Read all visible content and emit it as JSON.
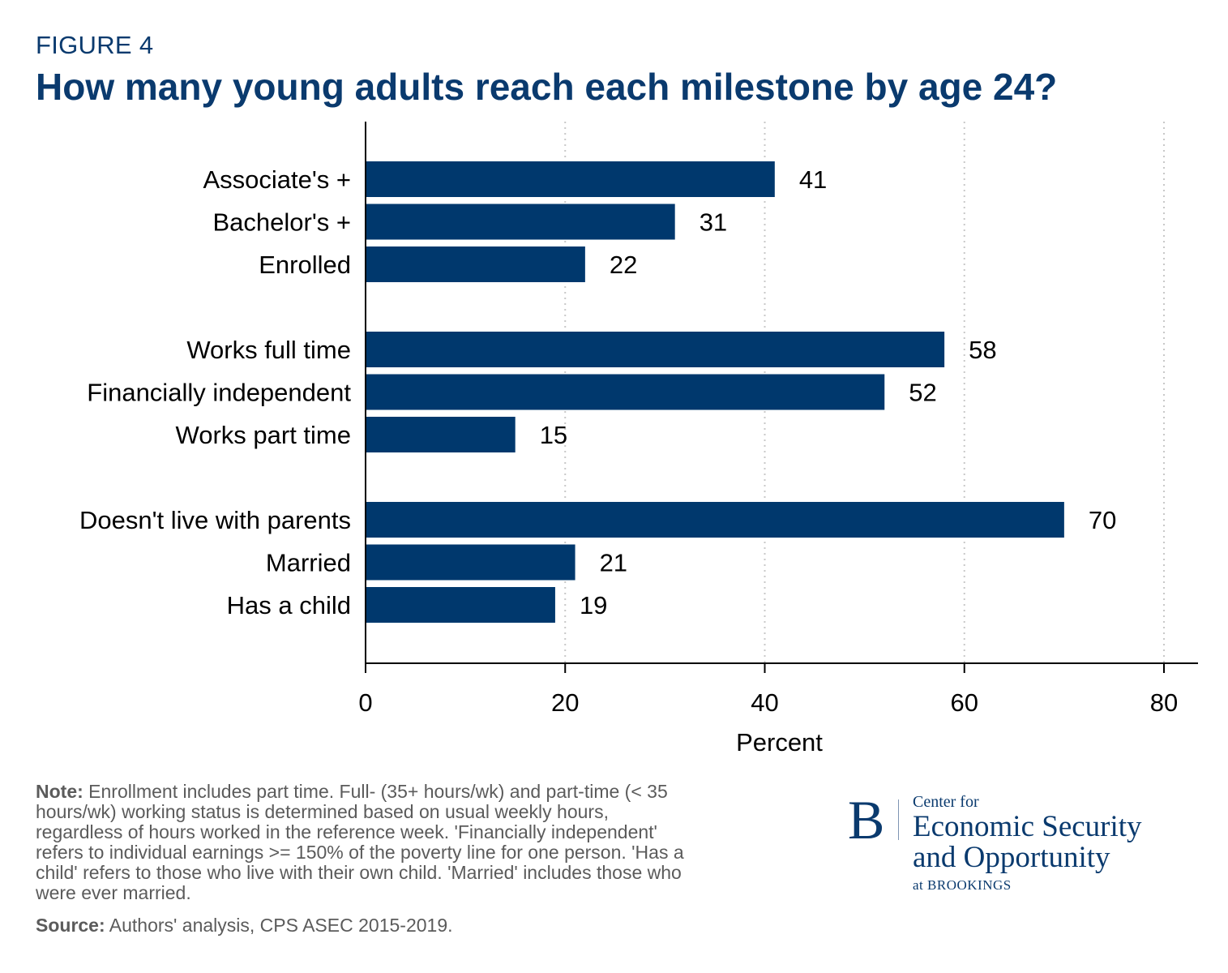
{
  "figure_label": "FIGURE 4",
  "chart_data": {
    "type": "bar",
    "orientation": "horizontal",
    "title": "How many young adults reach each milestone by age 24?",
    "xlabel": "Percent",
    "ylabel": "",
    "xlim": [
      0,
      80
    ],
    "xticks": [
      0,
      20,
      40,
      60,
      80
    ],
    "grid": "vertical dotted",
    "bar_color": "#00386d",
    "groups": [
      {
        "categories": [
          "Associate's +",
          "Bachelor's +",
          "Enrolled"
        ],
        "values": [
          41,
          31,
          22
        ]
      },
      {
        "categories": [
          "Works full time",
          "Financially independent",
          "Works part time"
        ],
        "values": [
          58,
          52,
          15
        ]
      },
      {
        "categories": [
          "Doesn't live with parents",
          "Married",
          "Has a child"
        ],
        "values": [
          70,
          21,
          19
        ]
      }
    ]
  },
  "note": {
    "label": "Note:",
    "text": " Enrollment includes part time. Full- (35+ hours/wk) and part-time (< 35 hours/wk) working status is determined based on usual weekly hours, regardless of hours worked in the reference week. 'Financially independent' refers to individual earnings >= 150% of the poverty line for one person. 'Has a child' refers to those who live with their own child. 'Married' includes those who were ever married."
  },
  "source": {
    "label": "Source:",
    "text": " Authors' analysis, CPS ASEC 2015-2019."
  },
  "logo": {
    "letter": "B",
    "line1": "Center for",
    "line2": "Economic Security",
    "line3": "and Opportunity",
    "line4": "at BROOKINGS"
  }
}
